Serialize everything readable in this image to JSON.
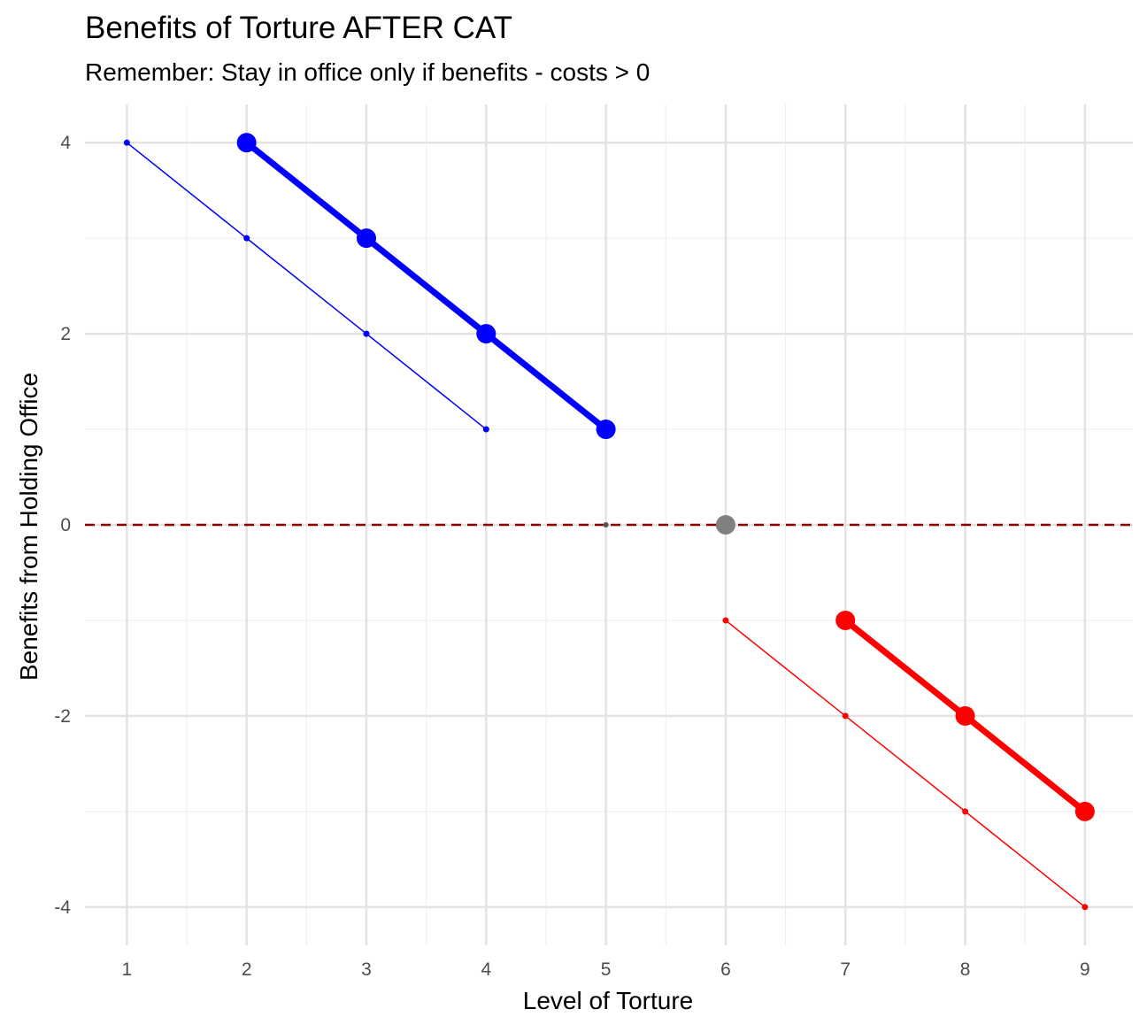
{
  "chart_data": {
    "type": "line",
    "title": "Benefits of Torture AFTER CAT",
    "subtitle": "Remember: Stay in office only if benefits - costs > 0",
    "xlabel": "Level of Torture",
    "ylabel": "Benefits from Holding Office",
    "xlim": [
      0.65,
      9.4
    ],
    "ylim": [
      -4.4,
      4.4
    ],
    "x_ticks": [
      "1",
      "2",
      "3",
      "4",
      "5",
      "6",
      "7",
      "8",
      "9"
    ],
    "y_ticks": [
      "-4",
      "-2",
      "0",
      "2",
      "4"
    ],
    "grid": true,
    "legend": "none",
    "reference_line": {
      "y": 0,
      "style": "dashed",
      "color": "#8B0000"
    },
    "series": [
      {
        "color": "#0000FF",
        "weight": "thin",
        "x": [
          1,
          2,
          3,
          4
        ],
        "y": [
          4,
          3,
          2,
          1
        ]
      },
      {
        "color": "#0000FF",
        "weight": "thick",
        "x": [
          2,
          3,
          4,
          5
        ],
        "y": [
          4,
          3,
          2,
          1
        ]
      },
      {
        "color": "#FF0000",
        "weight": "thin",
        "x": [
          6,
          7,
          8,
          9
        ],
        "y": [
          -1,
          -2,
          -3,
          -4
        ]
      },
      {
        "color": "#FF0000",
        "weight": "thick",
        "x": [
          7,
          8,
          9
        ],
        "y": [
          -1,
          -2,
          -3
        ]
      }
    ],
    "points": [
      {
        "x": 5,
        "y": 0,
        "color": "#555555",
        "size": "small"
      },
      {
        "x": 6,
        "y": 0,
        "color": "#808080",
        "size": "large"
      }
    ]
  }
}
